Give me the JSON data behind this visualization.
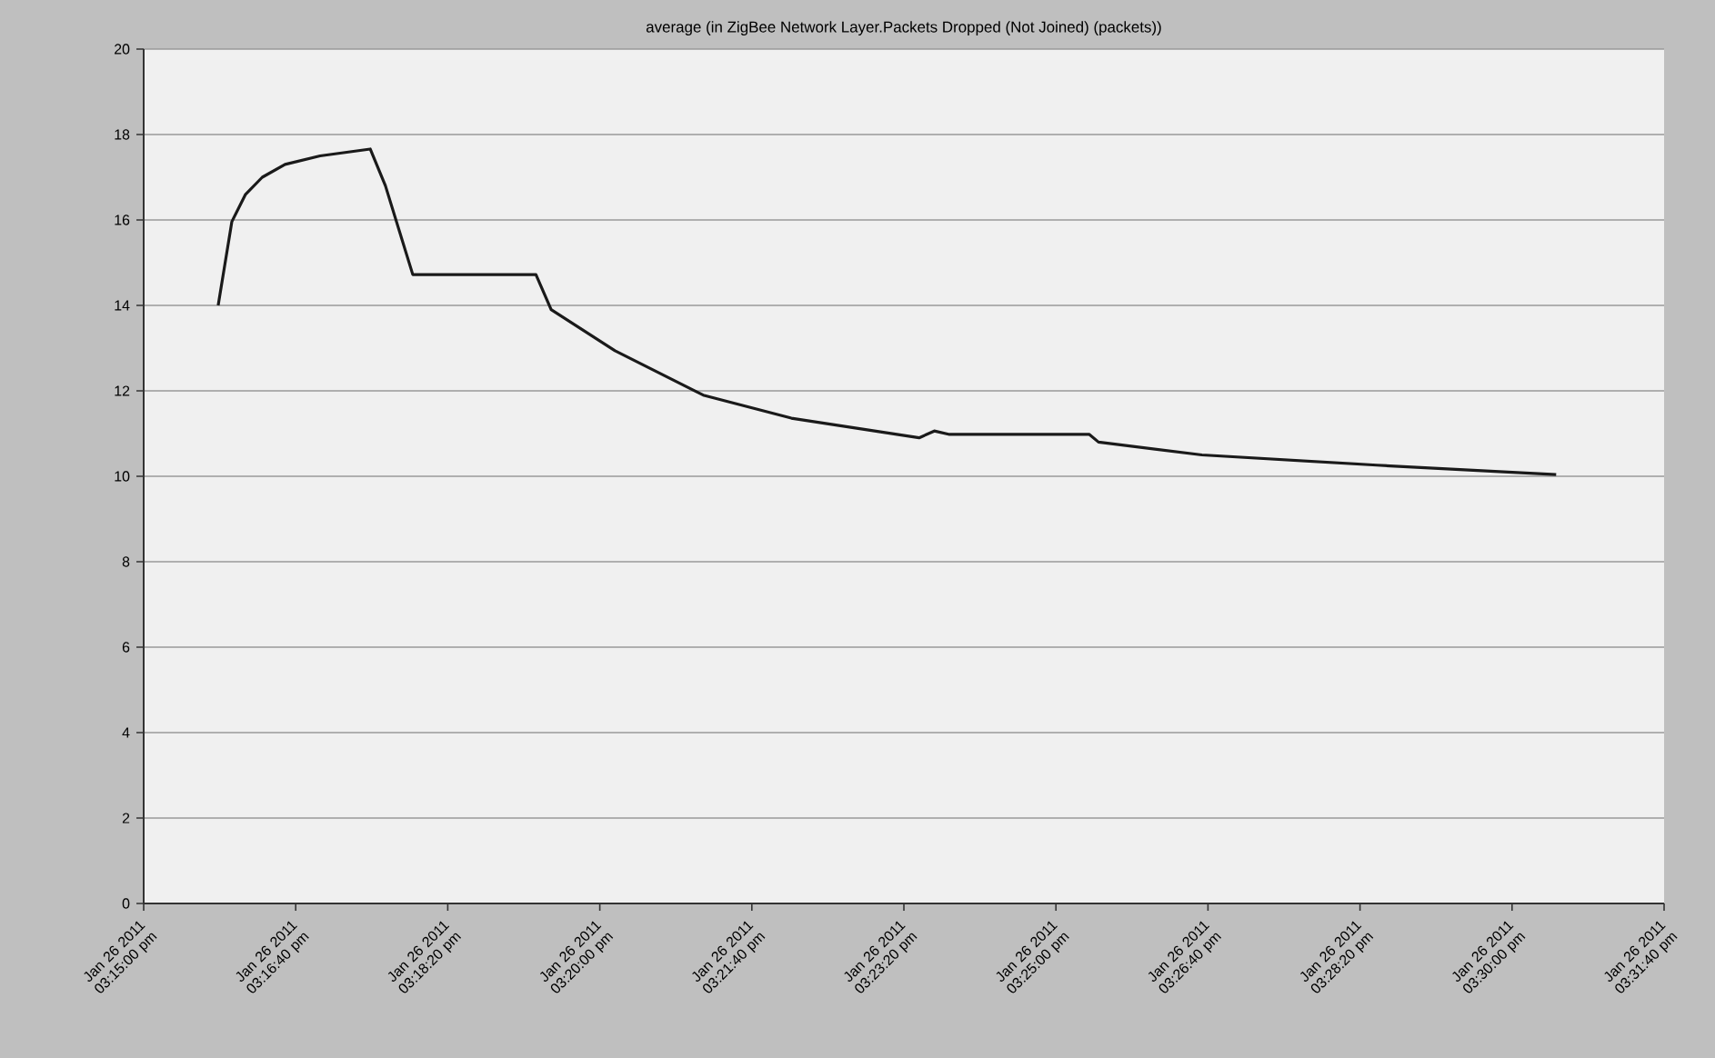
{
  "chart_data": {
    "type": "line",
    "title": "average (in ZigBee Network Layer.Packets Dropped (Not Joined) (packets))",
    "x": [
      "2011-01-26T15:15:49",
      "2011-01-26T15:15:58",
      "2011-01-26T15:16:07",
      "2011-01-26T15:16:18",
      "2011-01-26T15:16:33",
      "2011-01-26T15:16:56",
      "2011-01-26T15:17:29",
      "2011-01-26T15:17:39",
      "2011-01-26T15:17:57",
      "2011-01-26T15:19:18",
      "2011-01-26T15:19:28",
      "2011-01-26T15:20:10",
      "2011-01-26T15:21:08",
      "2011-01-26T15:22:06",
      "2011-01-26T15:23:30",
      "2011-01-26T15:23:40",
      "2011-01-26T15:23:50",
      "2011-01-26T15:25:22",
      "2011-01-26T15:25:28",
      "2011-01-26T15:26:36",
      "2011-01-26T15:28:31",
      "2011-01-26T15:30:29"
    ],
    "series": [
      {
        "color": "#1a1a1a",
        "values": [
          14.0,
          15.96,
          16.6,
          17.0,
          17.3,
          17.5,
          17.66,
          16.8,
          14.72,
          14.72,
          13.9,
          12.94,
          11.9,
          11.36,
          10.9,
          11.06,
          10.98,
          10.98,
          10.8,
          10.5,
          10.26,
          10.04
        ]
      }
    ],
    "xlim": [
      "2011-01-26T15:15:00",
      "2011-01-26T15:31:40"
    ],
    "xticks": [
      {
        "value": "2011-01-26T15:15:00",
        "label": "Jan 26 2011 03:15:00 pm"
      },
      {
        "value": "2011-01-26T15:16:40",
        "label": "Jan 26 2011 03:16:40 pm"
      },
      {
        "value": "2011-01-26T15:18:20",
        "label": "Jan 26 2011 03:18:20 pm"
      },
      {
        "value": "2011-01-26T15:20:00",
        "label": "Jan 26 2011 03:20:00 pm"
      },
      {
        "value": "2011-01-26T15:21:40",
        "label": "Jan 26 2011 03:21:40 pm"
      },
      {
        "value": "2011-01-26T15:23:20",
        "label": "Jan 26 2011 03:23:20 pm"
      },
      {
        "value": "2011-01-26T15:25:00",
        "label": "Jan 26 2011 03:25:00 pm"
      },
      {
        "value": "2011-01-26T15:26:40",
        "label": "Jan 26 2011 03:26:40 pm"
      },
      {
        "value": "2011-01-26T15:28:20",
        "label": "Jan 26 2011 03:28:20 pm"
      },
      {
        "value": "2011-01-26T15:30:00",
        "label": "Jan 26 2011 03:30:00 pm"
      },
      {
        "value": "2011-01-26T15:31:40",
        "label": "Jan 26 2011 03:31:40 pm"
      }
    ],
    "ylim": [
      0,
      20
    ],
    "yticks": [
      0,
      2,
      4,
      6,
      8,
      10,
      12,
      14,
      16,
      18,
      20
    ],
    "grid": "y",
    "marker": "none",
    "line_style": "solid"
  }
}
